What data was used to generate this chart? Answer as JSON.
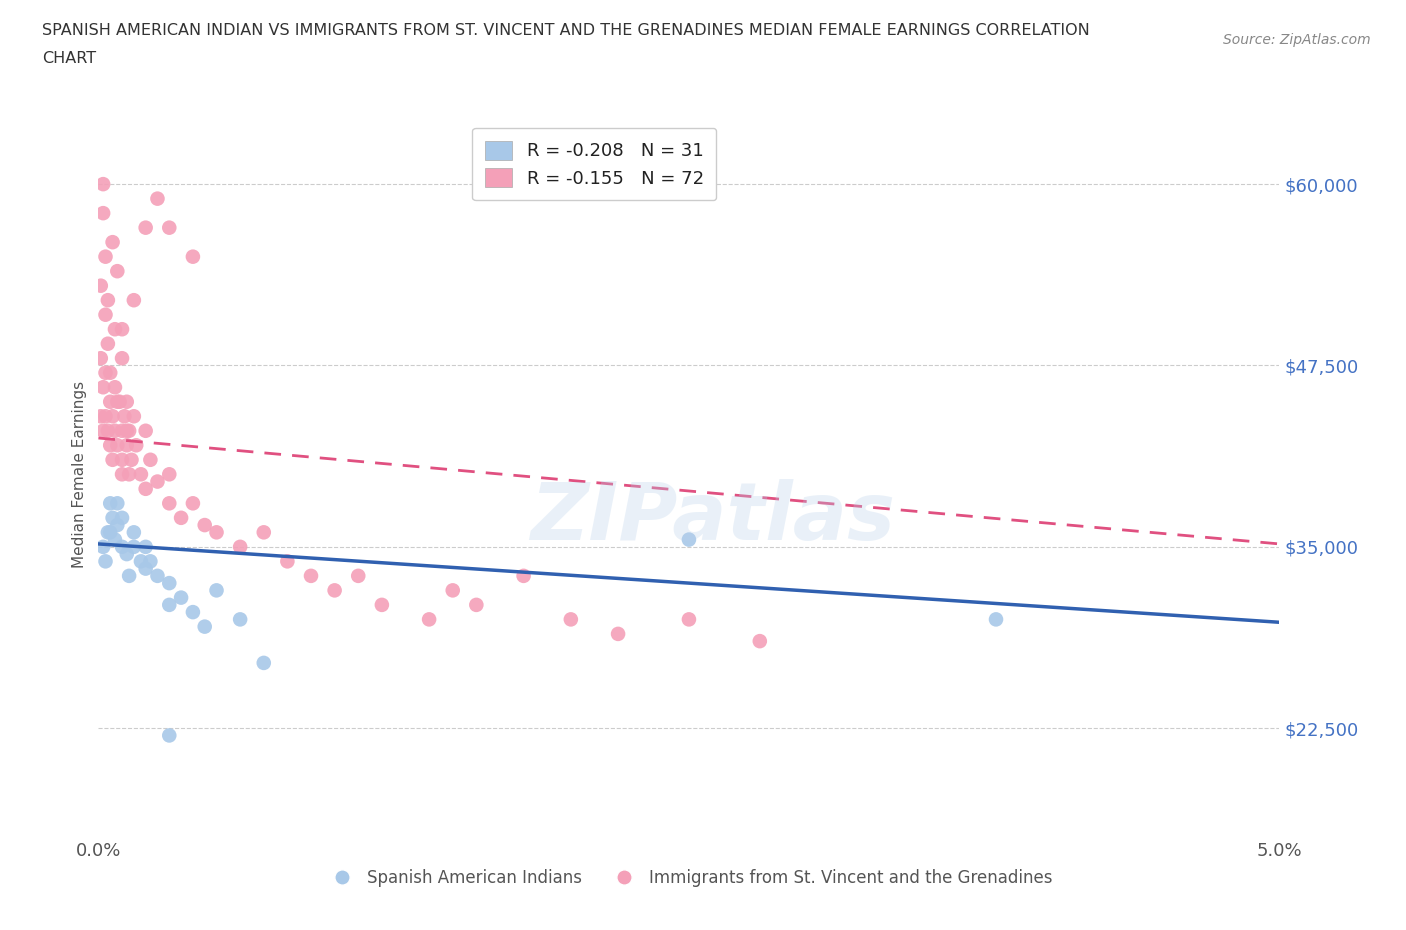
{
  "title_line1": "SPANISH AMERICAN INDIAN VS IMMIGRANTS FROM ST. VINCENT AND THE GRENADINES MEDIAN FEMALE EARNINGS CORRELATION",
  "title_line2": "CHART",
  "source_text": "Source: ZipAtlas.com",
  "ylabel": "Median Female Earnings",
  "xlim": [
    0.0,
    0.05
  ],
  "ylim": [
    15000,
    65000
  ],
  "yticks": [
    22500,
    35000,
    47500,
    60000
  ],
  "ytick_labels": [
    "$22,500",
    "$35,000",
    "$47,500",
    "$60,000"
  ],
  "xticks": [
    0.0,
    0.01,
    0.02,
    0.03,
    0.04,
    0.05
  ],
  "xtick_labels": [
    "0.0%",
    "",
    "",
    "",
    "",
    "5.0%"
  ],
  "watermark": "ZIPatlas",
  "legend_r_blue": "-0.208",
  "legend_n_blue": "31",
  "legend_r_pink": "-0.155",
  "legend_n_pink": "72",
  "blue_color": "#a8c8e8",
  "pink_color": "#f4a0b8",
  "blue_line_color": "#3060b0",
  "pink_line_color": "#e05080",
  "grid_color": "#cccccc",
  "ytick_color": "#4472c4",
  "legend_label_blue": "Spanish American Indians",
  "legend_label_pink": "Immigrants from St. Vincent and the Grenadines",
  "blue_x": [
    0.0002,
    0.0003,
    0.0004,
    0.0005,
    0.0005,
    0.0006,
    0.0007,
    0.0008,
    0.0008,
    0.001,
    0.001,
    0.0012,
    0.0013,
    0.0015,
    0.0015,
    0.0018,
    0.002,
    0.002,
    0.0022,
    0.0025,
    0.003,
    0.003,
    0.0035,
    0.004,
    0.0045,
    0.005,
    0.006,
    0.007,
    0.025,
    0.038,
    0.003
  ],
  "blue_y": [
    35000,
    34000,
    36000,
    38000,
    36000,
    37000,
    35500,
    38000,
    36500,
    37000,
    35000,
    34500,
    33000,
    36000,
    35000,
    34000,
    35000,
    33500,
    34000,
    33000,
    32500,
    31000,
    31500,
    30500,
    29500,
    32000,
    30000,
    27000,
    35500,
    30000,
    22000
  ],
  "pink_x": [
    0.0001,
    0.0002,
    0.0002,
    0.0003,
    0.0003,
    0.0004,
    0.0005,
    0.0005,
    0.0006,
    0.0006,
    0.0007,
    0.0007,
    0.0008,
    0.0009,
    0.001,
    0.001,
    0.001,
    0.0011,
    0.0012,
    0.0012,
    0.0013,
    0.0013,
    0.0014,
    0.0015,
    0.0016,
    0.0018,
    0.002,
    0.002,
    0.0022,
    0.0025,
    0.003,
    0.003,
    0.0035,
    0.004,
    0.0045,
    0.005,
    0.006,
    0.007,
    0.008,
    0.009,
    0.01,
    0.011,
    0.012,
    0.014,
    0.015,
    0.016,
    0.018,
    0.02,
    0.022,
    0.025,
    0.028,
    0.004,
    0.003,
    0.0025,
    0.002,
    0.0015,
    0.001,
    0.0008,
    0.0006,
    0.0004,
    0.0003,
    0.0002,
    0.0001,
    0.0001,
    0.0002,
    0.0003,
    0.0004,
    0.0005,
    0.0007,
    0.0008,
    0.001,
    0.0012
  ],
  "pink_y": [
    44000,
    43000,
    46000,
    44000,
    47000,
    43000,
    45000,
    42000,
    44000,
    41000,
    43000,
    46000,
    42000,
    45000,
    40000,
    43000,
    41000,
    44000,
    42000,
    45000,
    40000,
    43000,
    41000,
    44000,
    42000,
    40000,
    43000,
    39000,
    41000,
    39500,
    38000,
    40000,
    37000,
    38000,
    36500,
    36000,
    35000,
    36000,
    34000,
    33000,
    32000,
    33000,
    31000,
    30000,
    32000,
    31000,
    33000,
    30000,
    29000,
    30000,
    28500,
    55000,
    57000,
    59000,
    57000,
    52000,
    50000,
    54000,
    56000,
    49000,
    51000,
    58000,
    53000,
    48000,
    60000,
    55000,
    52000,
    47000,
    50000,
    45000,
    48000,
    43000
  ]
}
